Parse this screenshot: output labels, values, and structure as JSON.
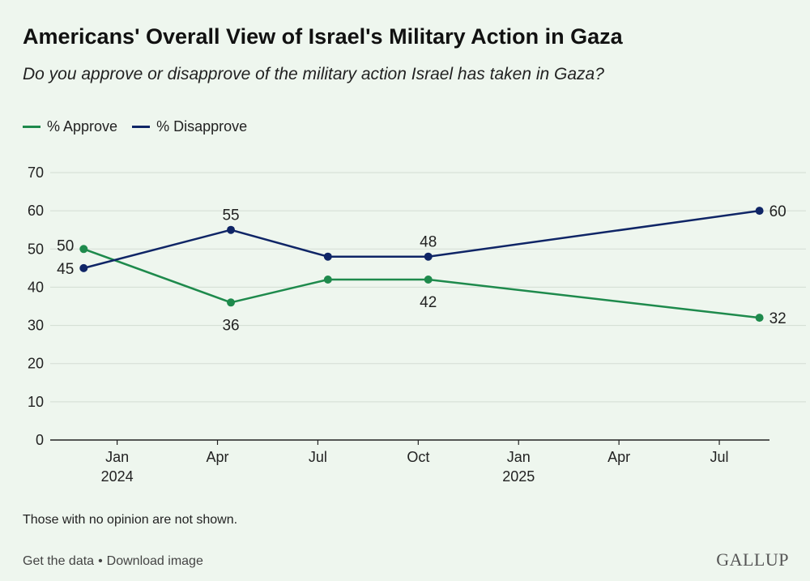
{
  "title": "Americans' Overall View of Israel's Military Action in Gaza",
  "subtitle": "Do you approve or disapprove of the military action Israel has taken in Gaza?",
  "legend": {
    "approve": "% Approve",
    "disapprove": "% Disapprove"
  },
  "colors": {
    "approve": "#1e8a4c",
    "disapprove": "#0f2566",
    "grid": "#d3dcd3",
    "axis": "#222222",
    "text": "#222222"
  },
  "chart_data": {
    "type": "line",
    "title": "Americans' Overall View of Israel's Military Action in Gaza",
    "xlabel": "",
    "ylabel": "",
    "ylim": [
      0,
      70
    ],
    "yticks": [
      0,
      10,
      20,
      30,
      40,
      50,
      60,
      70
    ],
    "x_months_range": [
      0,
      21.5
    ],
    "xticks": [
      {
        "m": 2,
        "label": "Jan",
        "sub": "2024"
      },
      {
        "m": 5,
        "label": "Apr",
        "sub": ""
      },
      {
        "m": 8,
        "label": "Jul",
        "sub": ""
      },
      {
        "m": 11,
        "label": "Oct",
        "sub": ""
      },
      {
        "m": 14,
        "label": "Jan",
        "sub": "2025"
      },
      {
        "m": 17,
        "label": "Apr",
        "sub": ""
      },
      {
        "m": 20,
        "label": "Jul",
        "sub": ""
      }
    ],
    "series": [
      {
        "name": "% Approve",
        "key": "approve",
        "points": [
          {
            "m": 1.0,
            "value": 50,
            "label": "50",
            "label_pos": "left-above"
          },
          {
            "m": 5.4,
            "value": 36,
            "label": "36",
            "label_pos": "below"
          },
          {
            "m": 8.3,
            "value": 42,
            "label": "",
            "label_pos": "none"
          },
          {
            "m": 11.3,
            "value": 42,
            "label": "42",
            "label_pos": "below"
          },
          {
            "m": 21.2,
            "value": 32,
            "label": "32",
            "label_pos": "right"
          }
        ]
      },
      {
        "name": "% Disapprove",
        "key": "disapprove",
        "points": [
          {
            "m": 1.0,
            "value": 45,
            "label": "45",
            "label_pos": "left"
          },
          {
            "m": 5.4,
            "value": 55,
            "label": "55",
            "label_pos": "above"
          },
          {
            "m": 8.3,
            "value": 48,
            "label": "",
            "label_pos": "none"
          },
          {
            "m": 11.3,
            "value": 48,
            "label": "48",
            "label_pos": "above"
          },
          {
            "m": 21.2,
            "value": 60,
            "label": "60",
            "label_pos": "right"
          }
        ]
      }
    ]
  },
  "footnote": "Those with no opinion are not shown.",
  "footer": {
    "get_data": "Get the data",
    "separator": "•",
    "download": "Download image",
    "logo": "GALLUP"
  }
}
